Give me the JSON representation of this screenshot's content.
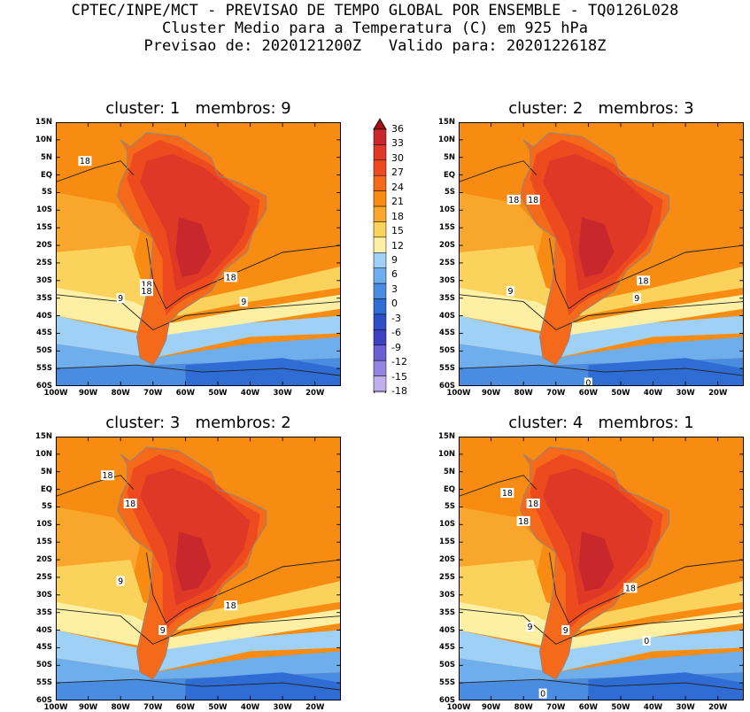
{
  "header": {
    "line1": "CPTEC/INPE/MCT - PREVISAO DE TEMPO GLOBAL POR ENSEMBLE - TQ0126L028",
    "line2": "Cluster Medio para a Temperatura (C) em 925 hPa",
    "line3": "Previsao de: 2020121200Z   Valido para: 2020122618Z"
  },
  "axes": {
    "lat_labels": [
      "15N",
      "10N",
      "5N",
      "EQ",
      "5S",
      "10S",
      "15S",
      "20S",
      "25S",
      "30S",
      "35S",
      "40S",
      "45S",
      "50S",
      "55S",
      "60S"
    ],
    "lon_labels": [
      "100W",
      "90W",
      "80W",
      "70W",
      "60W",
      "50W",
      "40W",
      "30W",
      "20W"
    ]
  },
  "colorbar": {
    "labels": [
      "36",
      "33",
      "30",
      "27",
      "24",
      "21",
      "18",
      "15",
      "12",
      "9",
      "6",
      "3",
      "0",
      "-3",
      "-6",
      "-9",
      "-12",
      "-15",
      "-18"
    ],
    "colors": [
      "#a50f15",
      "#c8282c",
      "#df3826",
      "#ee4a1f",
      "#f46a1a",
      "#f88c12",
      "#f9a72c",
      "#fad25c",
      "#fdf0a4",
      "#9fd0f5",
      "#6eaeec",
      "#4a8ce0",
      "#2f6dd4",
      "#2c4fc6",
      "#3f42c0",
      "#6a5fd0",
      "#9485de",
      "#bfb0ec",
      "#e3dbf7"
    ]
  },
  "panels": [
    {
      "title": "cluster: 1   membros: 9",
      "contour_labels": [
        "18",
        "18",
        "18",
        "18",
        "9",
        "9"
      ]
    },
    {
      "title": "cluster: 2   membros: 3",
      "contour_labels": [
        "18",
        "18",
        "18",
        "9",
        "9",
        "0"
      ]
    },
    {
      "title": "cluster: 3   membros: 2",
      "contour_labels": [
        "18",
        "18",
        "18",
        "9",
        "9"
      ]
    },
    {
      "title": "cluster: 4   membros: 1",
      "contour_labels": [
        "18",
        "18",
        "18",
        "18",
        "9",
        "9",
        "0",
        "0"
      ]
    }
  ]
}
